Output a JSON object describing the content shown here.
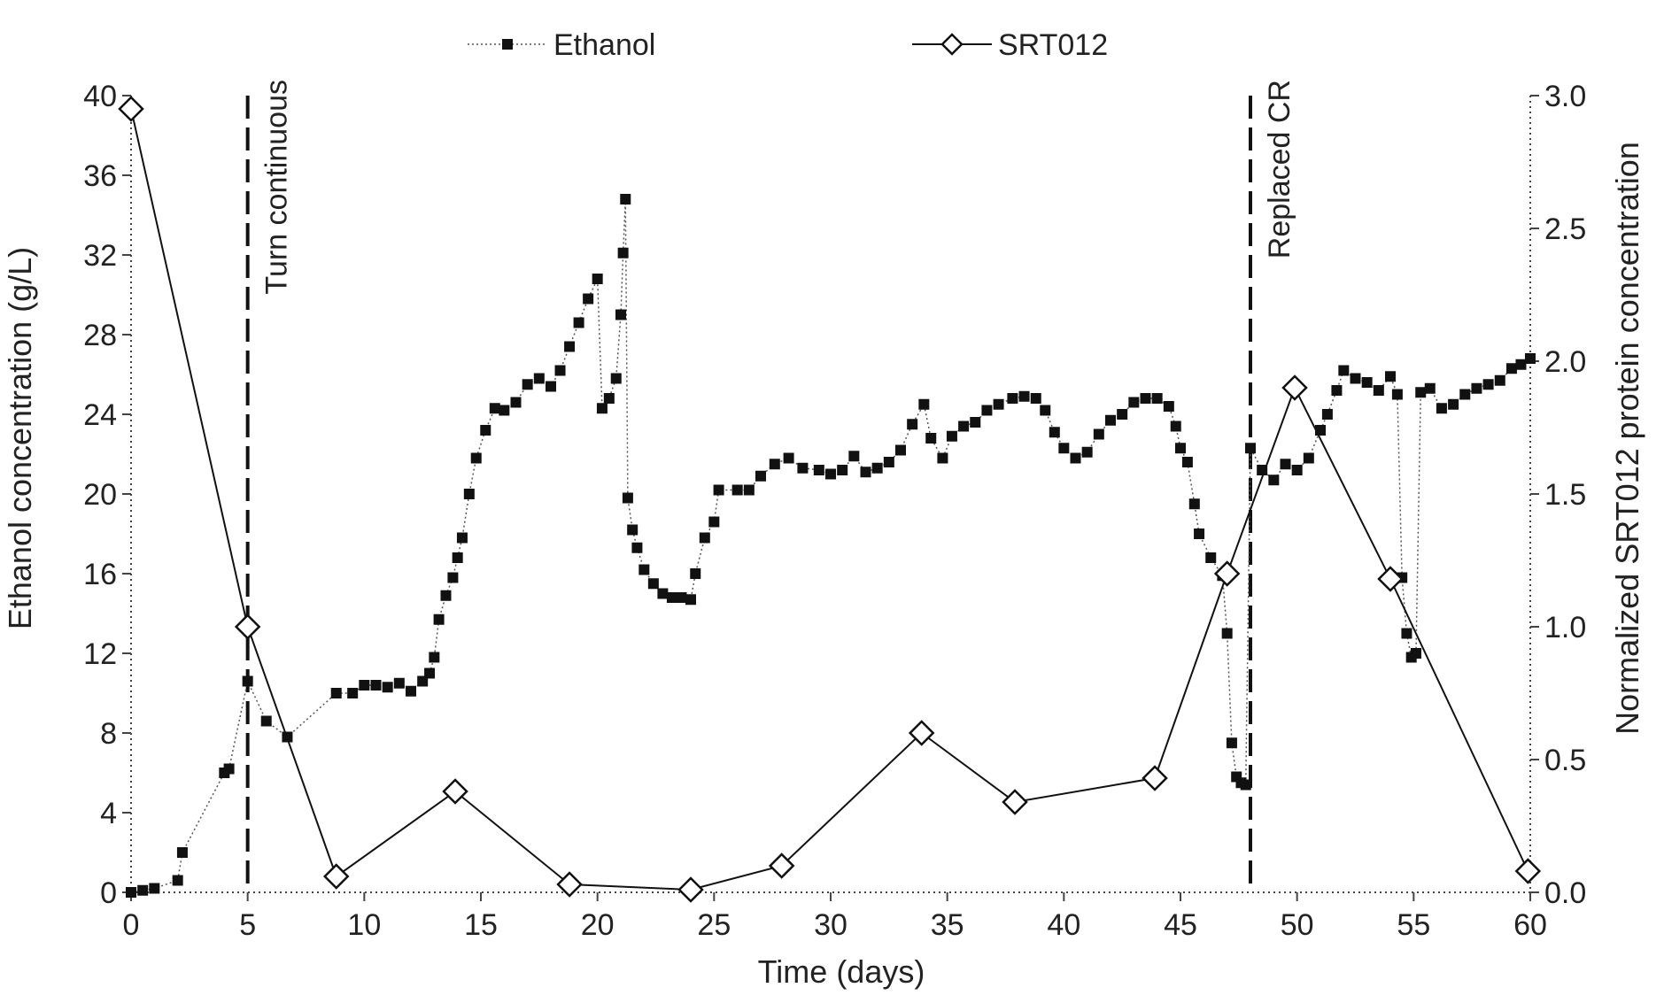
{
  "chart_data": {
    "type": "line",
    "xlabel": "Time (days)",
    "ylabel": "Ethanol concentration (g/L)",
    "y2label": "Normalized SRT012 protein concentration",
    "xlim": [
      0,
      60
    ],
    "ylim": [
      0,
      40
    ],
    "y2lim": [
      0,
      3.0
    ],
    "x_ticks": [
      "0",
      "5",
      "10",
      "15",
      "20",
      "25",
      "30",
      "35",
      "40",
      "45",
      "50",
      "55",
      "60"
    ],
    "y_ticks": [
      "0",
      "4",
      "8",
      "12",
      "16",
      "20",
      "24",
      "28",
      "32",
      "36",
      "40"
    ],
    "y2_ticks": [
      "0.0",
      "0.5",
      "1.0",
      "1.5",
      "2.0",
      "2.5",
      "3.0"
    ],
    "grid": false,
    "legend_position": "top",
    "annotations": [
      {
        "x": 5,
        "label": "Turn continuous"
      },
      {
        "x": 48,
        "label": "Replaced CR"
      }
    ],
    "series": [
      {
        "name": "Ethanol",
        "axis": "left",
        "style": "dotted-filled-square",
        "color": "#222222",
        "points": [
          [
            0,
            0
          ],
          [
            0.5,
            0.1
          ],
          [
            1,
            0.2
          ],
          [
            2,
            0.6
          ],
          [
            2.2,
            2
          ],
          [
            4,
            6
          ],
          [
            4.2,
            6.2
          ],
          [
            5,
            10.6
          ],
          [
            5.8,
            8.6
          ],
          [
            6.7,
            7.8
          ],
          [
            8.8,
            10
          ],
          [
            9.5,
            10
          ],
          [
            10,
            10.4
          ],
          [
            10.5,
            10.4
          ],
          [
            11,
            10.3
          ],
          [
            11.5,
            10.5
          ],
          [
            12,
            10.1
          ],
          [
            12.5,
            10.6
          ],
          [
            12.8,
            11
          ],
          [
            13,
            11.8
          ],
          [
            13.2,
            13.7
          ],
          [
            13.5,
            14.9
          ],
          [
            13.8,
            15.8
          ],
          [
            14,
            16.8
          ],
          [
            14.2,
            17.8
          ],
          [
            14.5,
            20
          ],
          [
            14.8,
            21.8
          ],
          [
            15.2,
            23.2
          ],
          [
            15.6,
            24.3
          ],
          [
            16,
            24.2
          ],
          [
            16.5,
            24.6
          ],
          [
            17,
            25.5
          ],
          [
            17.5,
            25.8
          ],
          [
            18,
            25.4
          ],
          [
            18.4,
            26.2
          ],
          [
            18.8,
            27.4
          ],
          [
            19.2,
            28.6
          ],
          [
            19.6,
            29.8
          ],
          [
            20,
            30.8
          ],
          [
            20.2,
            24.3
          ],
          [
            20.5,
            24.8
          ],
          [
            20.8,
            25.8
          ],
          [
            21,
            29
          ],
          [
            21.1,
            32.1
          ],
          [
            21.2,
            34.8
          ],
          [
            21.3,
            19.8
          ],
          [
            21.5,
            18.2
          ],
          [
            21.7,
            17.3
          ],
          [
            22,
            16.2
          ],
          [
            22.4,
            15.5
          ],
          [
            22.8,
            15
          ],
          [
            23.2,
            14.8
          ],
          [
            23.6,
            14.8
          ],
          [
            24,
            14.7
          ],
          [
            24.2,
            16
          ],
          [
            24.6,
            17.8
          ],
          [
            25,
            18.6
          ],
          [
            25.2,
            20.2
          ],
          [
            26,
            20.2
          ],
          [
            26.5,
            20.2
          ],
          [
            27,
            20.9
          ],
          [
            27.6,
            21.5
          ],
          [
            28.2,
            21.8
          ],
          [
            28.8,
            21.3
          ],
          [
            29.5,
            21.2
          ],
          [
            30,
            21
          ],
          [
            30.5,
            21.2
          ],
          [
            31,
            21.9
          ],
          [
            31.5,
            21.1
          ],
          [
            32,
            21.3
          ],
          [
            32.5,
            21.6
          ],
          [
            33,
            22.2
          ],
          [
            33.5,
            23.5
          ],
          [
            34,
            24.5
          ],
          [
            34.3,
            22.8
          ],
          [
            34.8,
            21.8
          ],
          [
            35.2,
            22.9
          ],
          [
            35.7,
            23.4
          ],
          [
            36.2,
            23.6
          ],
          [
            36.7,
            24.2
          ],
          [
            37.2,
            24.5
          ],
          [
            37.8,
            24.8
          ],
          [
            38.3,
            24.9
          ],
          [
            38.8,
            24.8
          ],
          [
            39.2,
            24.2
          ],
          [
            39.6,
            23.1
          ],
          [
            40,
            22.3
          ],
          [
            40.5,
            21.8
          ],
          [
            41,
            22.1
          ],
          [
            41.5,
            23
          ],
          [
            42,
            23.7
          ],
          [
            42.5,
            24
          ],
          [
            43,
            24.6
          ],
          [
            43.5,
            24.8
          ],
          [
            44,
            24.8
          ],
          [
            44.5,
            24.4
          ],
          [
            44.8,
            23.4
          ],
          [
            45,
            22.3
          ],
          [
            45.3,
            21.6
          ],
          [
            45.6,
            19.5
          ],
          [
            45.8,
            18
          ],
          [
            46.3,
            16.8
          ],
          [
            46.8,
            15.9
          ],
          [
            47,
            13
          ],
          [
            47.2,
            7.5
          ],
          [
            47.4,
            5.8
          ],
          [
            47.6,
            5.5
          ],
          [
            47.8,
            5.4
          ],
          [
            48,
            22.3
          ],
          [
            48.5,
            21.2
          ],
          [
            49,
            20.7
          ],
          [
            49.5,
            21.5
          ],
          [
            50,
            21.2
          ],
          [
            50.5,
            21.8
          ],
          [
            51,
            23.2
          ],
          [
            51.3,
            24
          ],
          [
            51.7,
            25.2
          ],
          [
            52,
            26.2
          ],
          [
            52.5,
            25.8
          ],
          [
            53,
            25.6
          ],
          [
            53.5,
            25.2
          ],
          [
            54,
            25.9
          ],
          [
            54.3,
            25
          ],
          [
            54.5,
            15.8
          ],
          [
            54.7,
            13
          ],
          [
            54.9,
            11.8
          ],
          [
            55.1,
            12
          ],
          [
            55.3,
            25.1
          ],
          [
            55.7,
            25.3
          ],
          [
            56.2,
            24.3
          ],
          [
            56.7,
            24.5
          ],
          [
            57.2,
            25
          ],
          [
            57.7,
            25.3
          ],
          [
            58.2,
            25.5
          ],
          [
            58.7,
            25.7
          ],
          [
            59.2,
            26.3
          ],
          [
            59.6,
            26.5
          ],
          [
            60,
            26.8
          ]
        ]
      },
      {
        "name": "SRT012",
        "axis": "right",
        "style": "solid-open-diamond",
        "color": "#222222",
        "points": [
          [
            0,
            2.95
          ],
          [
            5,
            1.0
          ],
          [
            8.8,
            0.06
          ],
          [
            13.9,
            0.38
          ],
          [
            18.8,
            0.03
          ],
          [
            24,
            0.01
          ],
          [
            27.9,
            0.1
          ],
          [
            33.9,
            0.6
          ],
          [
            37.9,
            0.34
          ],
          [
            43.9,
            0.43
          ],
          [
            47,
            1.2
          ],
          [
            49.9,
            1.9
          ],
          [
            54,
            1.18
          ],
          [
            59.9,
            0.08
          ]
        ]
      }
    ]
  }
}
